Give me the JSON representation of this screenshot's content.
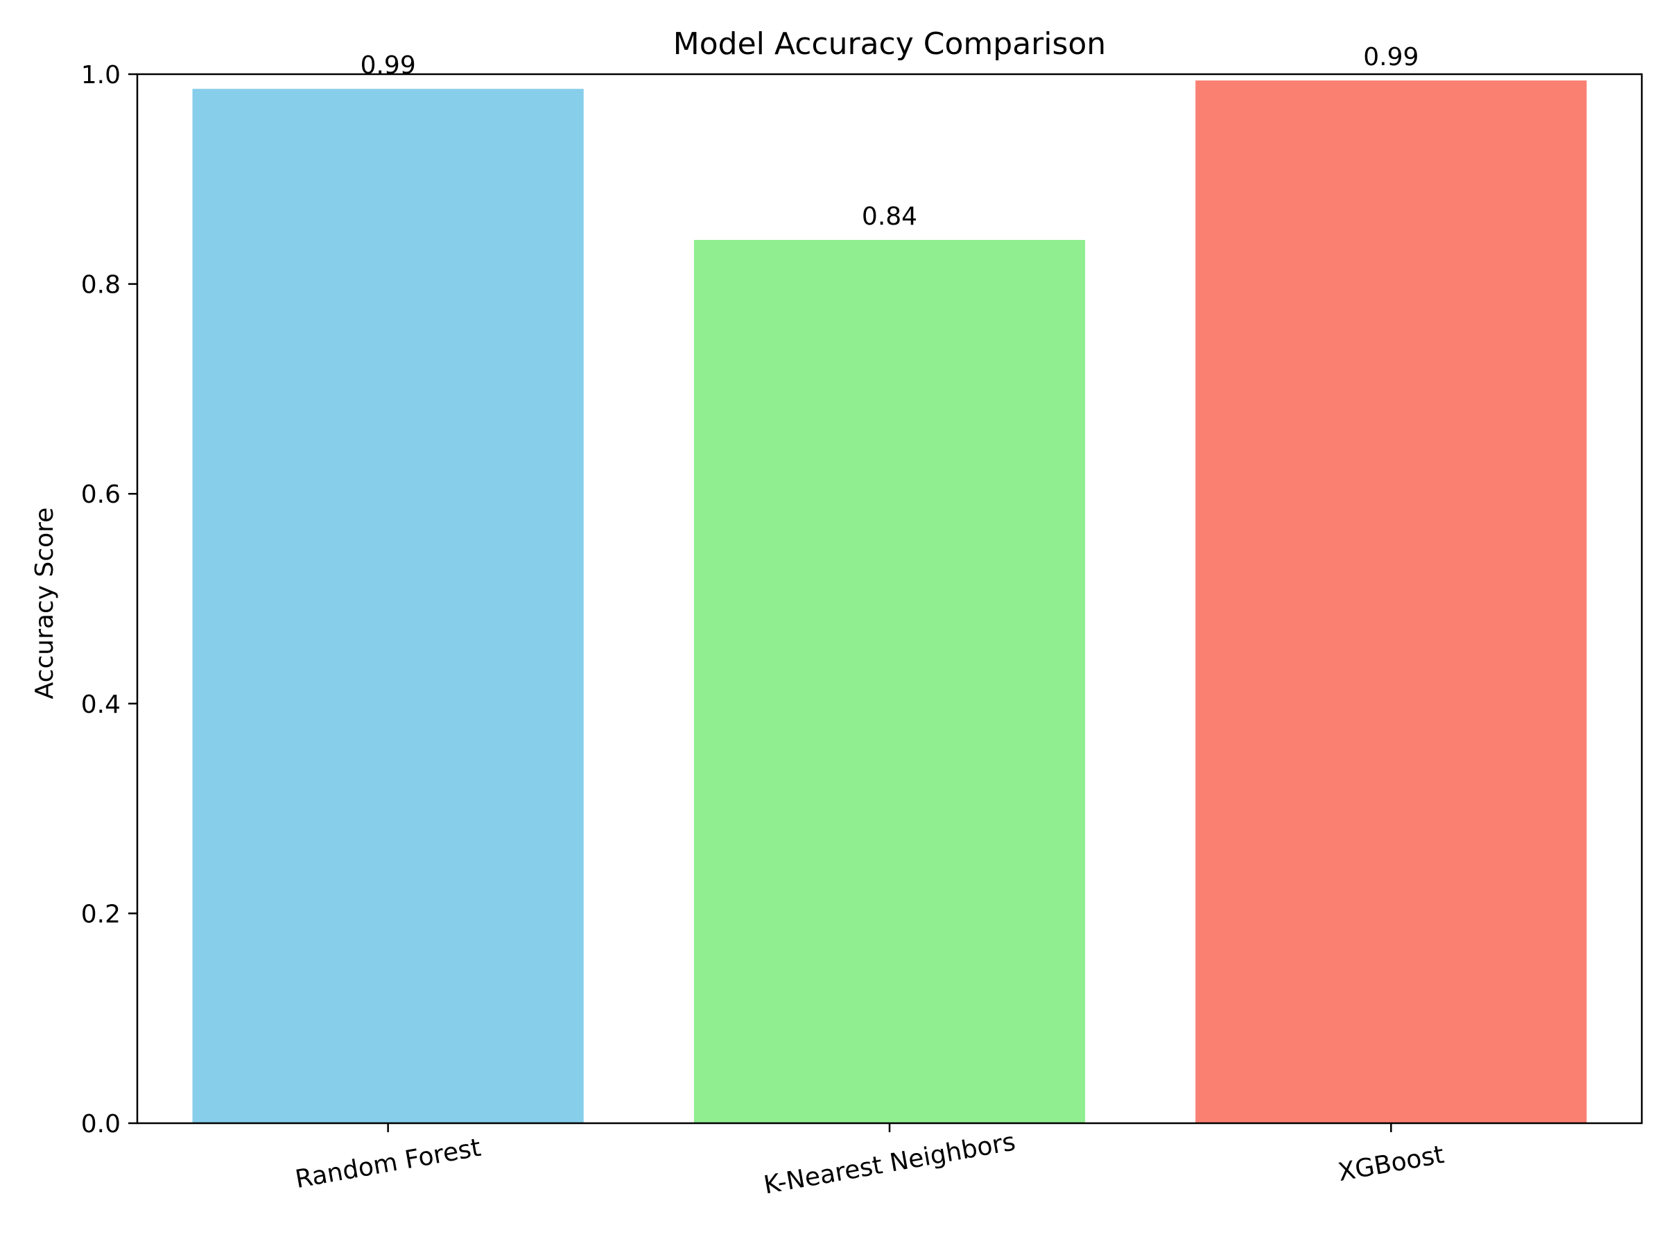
{
  "chart_data": {
    "type": "bar",
    "title": "Model Accuracy Comparison",
    "xlabel": "",
    "ylabel": "Accuracy Score",
    "categories": [
      "Random Forest",
      "K-Nearest Neighbors",
      "XGBoost"
    ],
    "values": [
      0.986,
      0.842,
      0.994
    ],
    "data_labels": [
      "0.99",
      "0.84",
      "0.99"
    ],
    "colors": [
      "#87CEEB",
      "#90EE90",
      "#FA8072"
    ],
    "ylim": [
      0,
      1.0
    ],
    "yticks": [
      0.0,
      0.2,
      0.4,
      0.6,
      0.8,
      1.0
    ],
    "ytick_labels": [
      "0.0",
      "0.2",
      "0.4",
      "0.6",
      "0.8",
      "1.0"
    ],
    "xtick_rotation_deg": -10,
    "grid": false,
    "legend": "none"
  }
}
